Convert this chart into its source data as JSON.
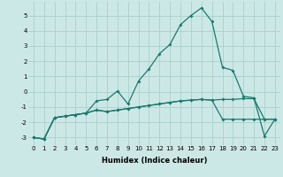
{
  "title": "",
  "xlabel": "Humidex (Indice chaleur)",
  "background_color": "#cce8e6",
  "line_color": "#1a7a6e",
  "grid_color": "#aad0cc",
  "x_values": [
    0,
    1,
    2,
    3,
    4,
    5,
    6,
    7,
    8,
    9,
    10,
    11,
    12,
    13,
    14,
    15,
    16,
    17,
    18,
    19,
    20,
    21,
    22,
    23
  ],
  "line1": [
    -3.0,
    -3.1,
    -1.7,
    -1.6,
    -1.5,
    -1.4,
    -0.6,
    -0.5,
    0.05,
    -0.8,
    0.7,
    1.5,
    2.5,
    3.1,
    4.4,
    5.0,
    5.5,
    4.6,
    1.6,
    1.4,
    -0.3,
    -0.4,
    -2.9,
    -1.8
  ],
  "line2": [
    -3.0,
    -3.1,
    -1.7,
    -1.6,
    -1.5,
    -1.4,
    -1.2,
    -1.3,
    -1.2,
    -1.1,
    -1.0,
    -0.9,
    -0.8,
    -0.7,
    -0.6,
    -0.55,
    -0.5,
    -0.55,
    -0.5,
    -0.5,
    -0.45,
    -0.45,
    -1.8,
    -1.8
  ],
  "line3": [
    -3.0,
    -3.1,
    -1.7,
    -1.6,
    -1.5,
    -1.4,
    -1.2,
    -1.3,
    -1.2,
    -1.1,
    -1.0,
    -0.9,
    -0.8,
    -0.7,
    -0.6,
    -0.55,
    -0.5,
    -0.55,
    -1.8,
    -1.8,
    -1.8,
    -1.8,
    -1.8,
    -1.8
  ],
  "ylim": [
    -3.5,
    5.9
  ],
  "xlim": [
    -0.5,
    23.5
  ],
  "yticks": [
    -3,
    -2,
    -1,
    0,
    1,
    2,
    3,
    4,
    5
  ],
  "xticks": [
    0,
    1,
    2,
    3,
    4,
    5,
    6,
    7,
    8,
    9,
    10,
    11,
    12,
    13,
    14,
    15,
    16,
    17,
    18,
    19,
    20,
    21,
    22,
    23
  ],
  "markersize": 2.0,
  "linewidth": 0.9,
  "tick_fontsize": 5.0,
  "xlabel_fontsize": 6.0
}
